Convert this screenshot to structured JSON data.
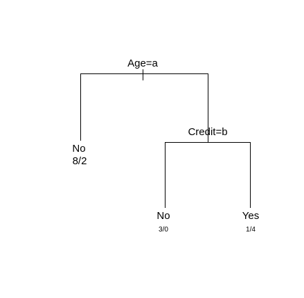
{
  "tree": {
    "root": {
      "split_label": "Age=a"
    },
    "inner": {
      "split_label": "Credit=b"
    },
    "leaves": [
      {
        "class_label": "No",
        "counts": "8/2"
      },
      {
        "class_label": "No",
        "counts": "3/0"
      },
      {
        "class_label": "Yes",
        "counts": "1/4"
      }
    ]
  }
}
